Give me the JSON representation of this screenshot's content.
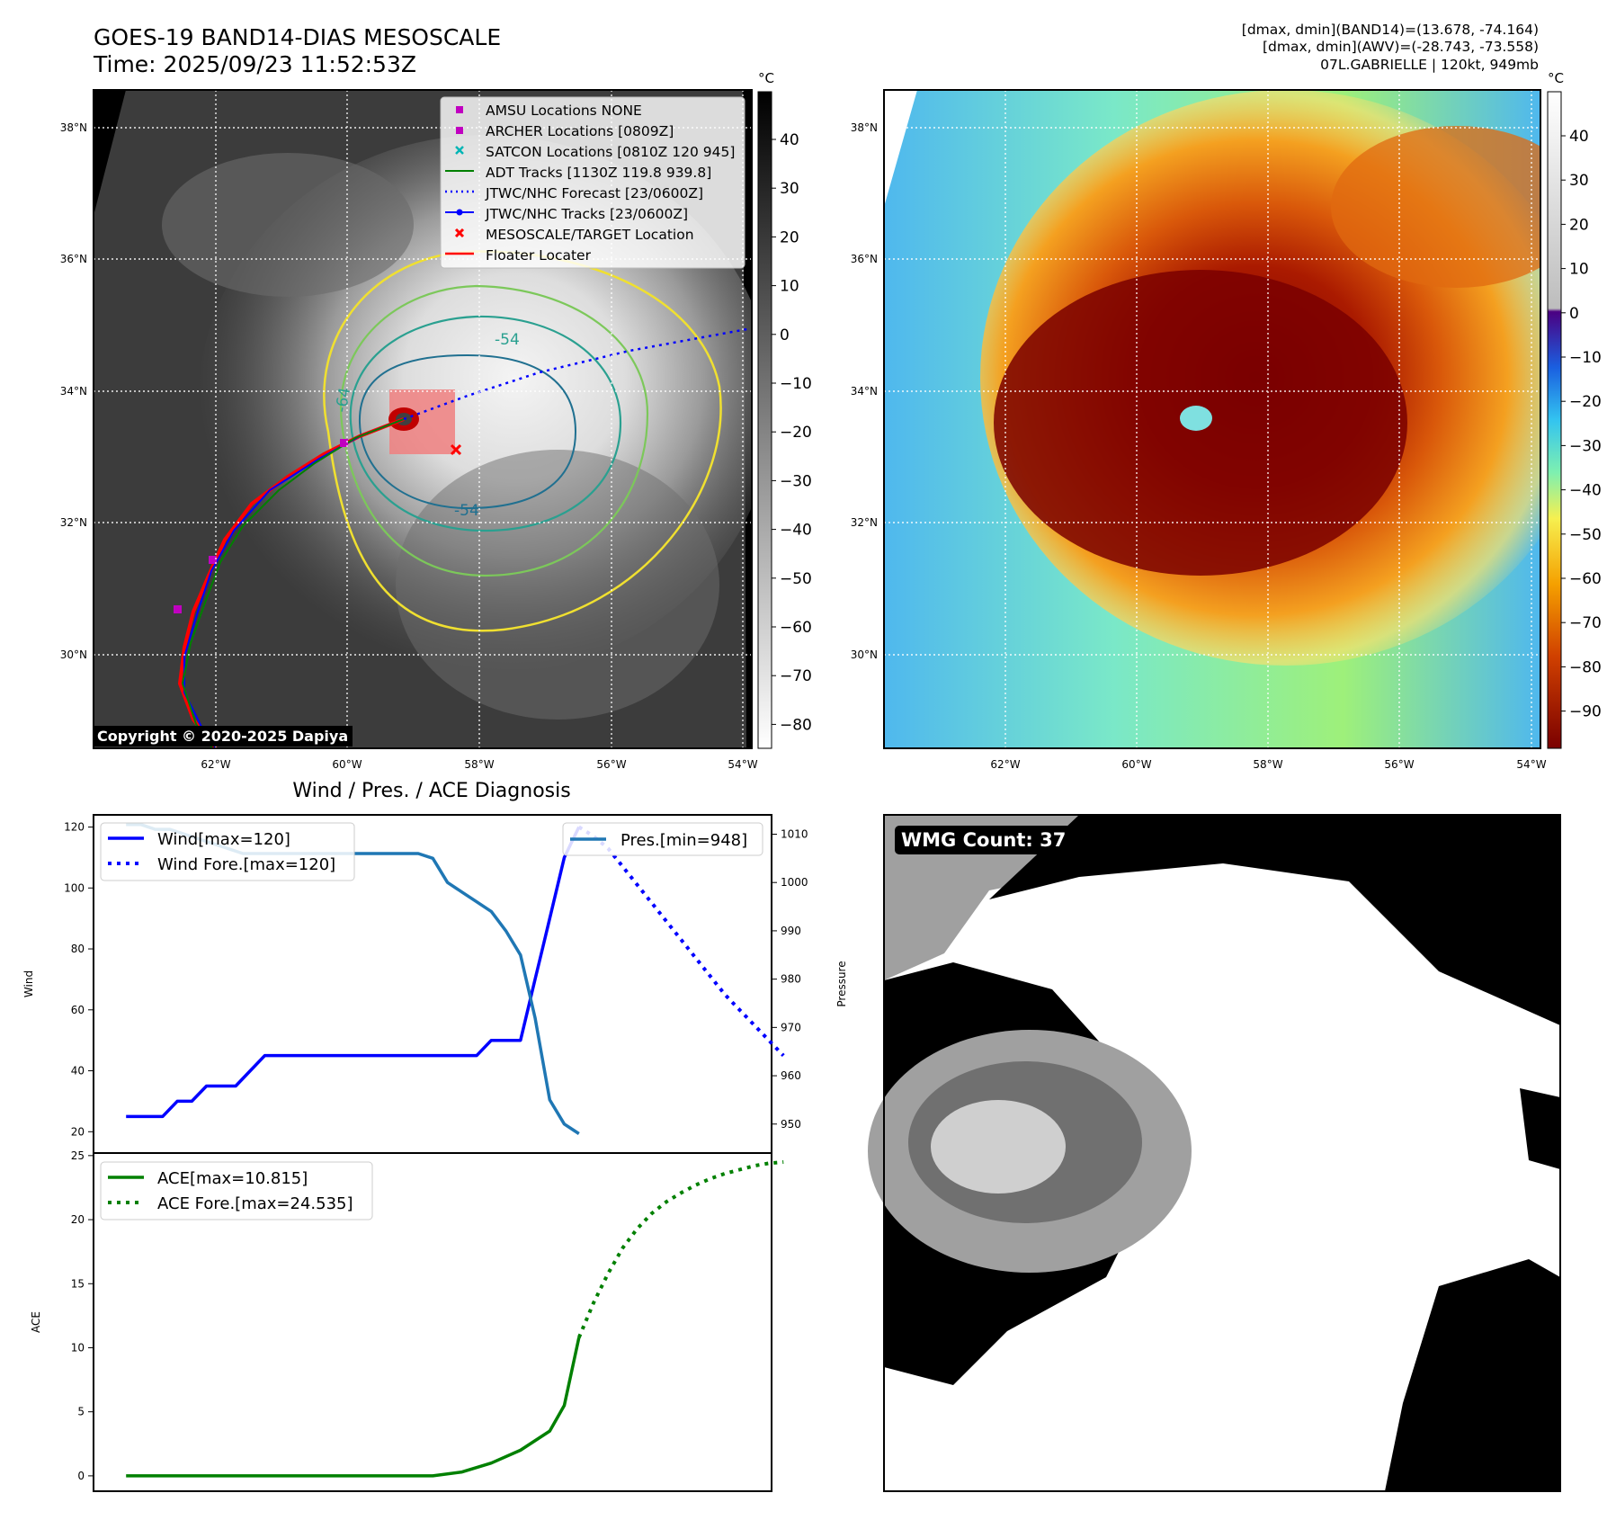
{
  "header": {
    "title_line1": "GOES-19 BAND14-DIAS MESOSCALE",
    "title_line2": "Time: 2025/09/23 11:52:53Z",
    "stats_line1": "[dmax, dmin](BAND14)=(13.678, -74.164)",
    "stats_line2": "[dmax, dmin](AWV)=(-28.743, -73.558)",
    "stats_line3": "07L.GABRIELLE | 120kt, 949mb"
  },
  "map": {
    "lat_ticks": [
      "38°N",
      "36°N",
      "34°N",
      "32°N",
      "30°N"
    ],
    "lon_ticks": [
      "62°W",
      "60°W",
      "58°W",
      "56°W",
      "54°W"
    ],
    "contour_labels": [
      "-54",
      "-64",
      "-54"
    ],
    "copyright": "Copyright © 2020-2025 Dapiya",
    "legend": [
      {
        "label": "AMSU Locations NONE",
        "color": "#c000c0",
        "marker": "square"
      },
      {
        "label": "ARCHER Locations [0809Z]",
        "color": "#c000c0",
        "marker": "square"
      },
      {
        "label": "SATCON Locations [0810Z 120 945]",
        "color": "#00b5b5",
        "marker": "x"
      },
      {
        "label": "ADT Tracks [1130Z 119.8 939.8]",
        "color": "#008000",
        "marker": "line"
      },
      {
        "label": "JTWC/NHC Forecast [23/0600Z]",
        "color": "#0000ff",
        "marker": "dotted"
      },
      {
        "label": "JTWC/NHC Tracks [23/0600Z]",
        "color": "#0000ff",
        "marker": "line-dot"
      },
      {
        "label": "MESOSCALE/TARGET Location",
        "color": "#ff0000",
        "marker": "x"
      },
      {
        "label": "Floater Locater",
        "color": "#ff0000",
        "marker": "line"
      }
    ]
  },
  "colorbars": {
    "unit": "°C",
    "ir_ticks": [
      "40",
      "30",
      "20",
      "10",
      "0",
      "−10",
      "−20",
      "−30",
      "−40",
      "−50",
      "−60",
      "−70",
      "−80"
    ],
    "awv_ticks": [
      "40",
      "30",
      "20",
      "10",
      "0",
      "−10",
      "−20",
      "−30",
      "−40",
      "−50",
      "−60",
      "−70",
      "−80",
      "−90"
    ]
  },
  "wmg": {
    "label": "WMG Count: 37"
  },
  "chart_data": [
    {
      "type": "line",
      "title": "Wind / Pres. / ACE Diagnosis",
      "ylabel": "Wind",
      "ylabel_right": "Pressure",
      "ylim": [
        13,
        124
      ],
      "ylim_right": [
        944,
        1014
      ],
      "yticks": [
        20,
        40,
        60,
        80,
        100,
        120
      ],
      "yticks_right": [
        950,
        960,
        970,
        980,
        990,
        1000,
        1010
      ],
      "xlim": [
        0,
        62
      ],
      "series": [
        {
          "name": "Wind[max=120]",
          "color": "#0000ff",
          "style": "solid",
          "axis": "left",
          "x": [
            2,
            4,
            4,
            6,
            6,
            7,
            7,
            9,
            9,
            11,
            11,
            13,
            13,
            15,
            15,
            17,
            19,
            21,
            23,
            25,
            27,
            29,
            31,
            33,
            35,
            37,
            39,
            41,
            43,
            44,
            44,
            46,
            46,
            48,
            50,
            52,
            54,
            56,
            57,
            58,
            59,
            60,
            61,
            62,
            63,
            64
          ],
          "y": [
            25,
            25,
            25,
            25,
            25,
            25,
            25,
            30,
            30,
            30,
            30,
            35,
            35,
            35,
            35,
            35,
            40,
            45,
            45,
            45,
            45,
            45,
            45,
            45,
            45,
            45,
            45,
            45,
            45,
            45,
            45,
            45,
            45,
            45,
            45,
            50,
            50,
            50,
            60,
            70,
            80,
            90,
            100,
            110,
            115,
            120
          ]
        },
        {
          "name": "Wind Fore.[max=120]",
          "color": "#0000ff",
          "style": "dotted",
          "axis": "left",
          "x": [
            64,
            66,
            68,
            70,
            72,
            74,
            76,
            78,
            80,
            82,
            84,
            86,
            88,
            90,
            92
          ],
          "y": [
            120,
            117,
            113,
            107,
            101,
            95,
            89,
            83,
            77,
            71,
            65,
            60,
            55,
            50,
            45
          ]
        }
      ]
    },
    {
      "type": "line",
      "ylabel": "Pressure",
      "series": [
        {
          "name": "Pres.[min=948]",
          "color": "#1f77b4",
          "style": "solid",
          "axis": "right",
          "x": [
            2,
            4,
            6,
            8,
            10,
            12,
            14,
            16,
            18,
            20,
            22,
            24,
            26,
            28,
            30,
            32,
            34,
            36,
            38,
            40,
            42,
            44,
            46,
            48,
            50,
            52,
            54,
            56,
            58,
            60,
            62,
            64
          ],
          "y": [
            1012,
            1012,
            1011,
            1011,
            1010,
            1009,
            1008,
            1007,
            1006,
            1006,
            1006,
            1006,
            1006,
            1006,
            1006,
            1006,
            1006,
            1006,
            1006,
            1006,
            1006,
            1005,
            1000,
            998,
            996,
            994,
            990,
            985,
            972,
            955,
            950,
            948
          ]
        }
      ]
    },
    {
      "type": "line",
      "ylabel": "ACE",
      "ylim": [
        -1.2,
        25.2
      ],
      "yticks": [
        0,
        5,
        10,
        15,
        20,
        25
      ],
      "series": [
        {
          "name": "ACE[max=10.815]",
          "color": "#008000",
          "style": "solid",
          "x": [
            2,
            10,
            20,
            30,
            40,
            44,
            48,
            52,
            56,
            60,
            62,
            64
          ],
          "y": [
            0,
            0,
            0,
            0,
            0,
            0,
            0.3,
            1,
            2,
            3.5,
            5.5,
            10.8
          ]
        },
        {
          "name": "ACE Fore.[max=24.535]",
          "color": "#008000",
          "style": "dotted",
          "x": [
            64,
            66,
            68,
            70,
            72,
            74,
            76,
            78,
            80,
            82,
            84,
            86,
            88,
            90,
            92
          ],
          "y": [
            10.8,
            13.5,
            15.8,
            17.8,
            19.3,
            20.5,
            21.4,
            22.1,
            22.7,
            23.2,
            23.6,
            23.9,
            24.2,
            24.4,
            24.5
          ]
        }
      ]
    }
  ]
}
